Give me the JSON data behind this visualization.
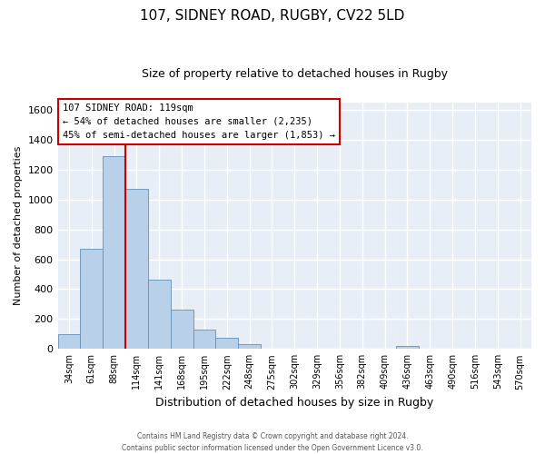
{
  "title": "107, SIDNEY ROAD, RUGBY, CV22 5LD",
  "subtitle": "Size of property relative to detached houses in Rugby",
  "xlabel": "Distribution of detached houses by size in Rugby",
  "ylabel": "Number of detached properties",
  "bar_color": "#b8d0e8",
  "bar_edge_color": "#6090b8",
  "bin_labels": [
    "34sqm",
    "61sqm",
    "88sqm",
    "114sqm",
    "141sqm",
    "168sqm",
    "195sqm",
    "222sqm",
    "248sqm",
    "275sqm",
    "302sqm",
    "329sqm",
    "356sqm",
    "382sqm",
    "409sqm",
    "436sqm",
    "463sqm",
    "490sqm",
    "516sqm",
    "543sqm",
    "570sqm"
  ],
  "bar_values": [
    100,
    670,
    1290,
    1070,
    465,
    265,
    128,
    72,
    30,
    0,
    0,
    0,
    0,
    0,
    0,
    20,
    0,
    0,
    0,
    0,
    0
  ],
  "vline_x": 3,
  "annotation_line1": "107 SIDNEY ROAD: 119sqm",
  "annotation_line2": "← 54% of detached houses are smaller (2,235)",
  "annotation_line3": "45% of semi-detached houses are larger (1,853) →",
  "ylim": [
    0,
    1650
  ],
  "yticks": [
    0,
    200,
    400,
    600,
    800,
    1000,
    1200,
    1400,
    1600
  ],
  "vline_color": "#cc0000",
  "box_edge_color": "#cc0000",
  "footer_line1": "Contains HM Land Registry data © Crown copyright and database right 2024.",
  "footer_line2": "Contains public sector information licensed under the Open Government Licence v3.0.",
  "background_color": "#ffffff",
  "plot_bg_color": "#e8eef5"
}
